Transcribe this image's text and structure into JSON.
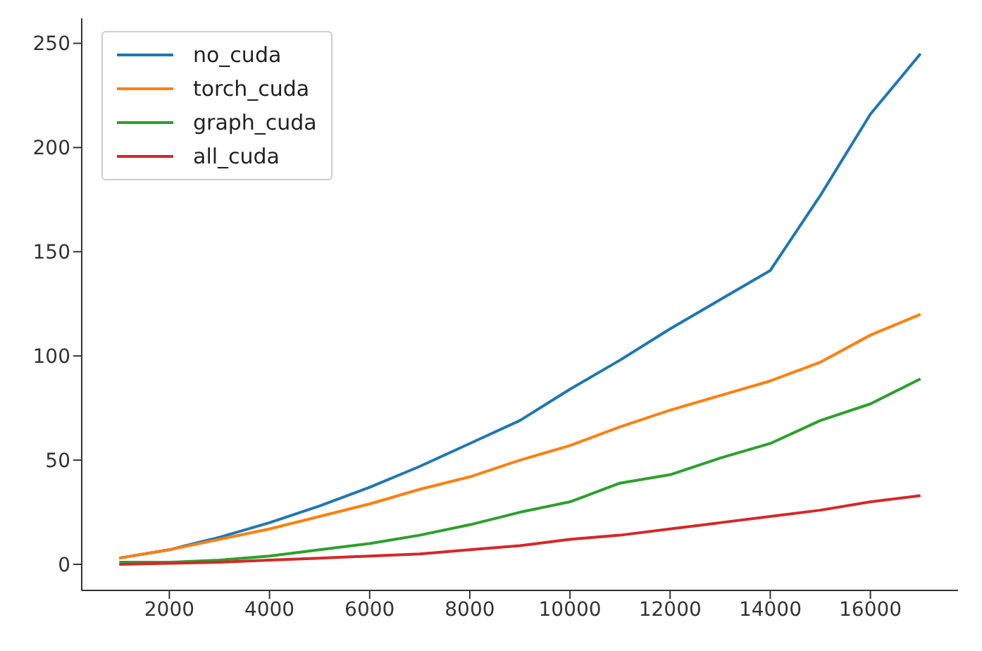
{
  "chart_data": {
    "type": "line",
    "x": [
      1000,
      2000,
      3000,
      4000,
      5000,
      6000,
      7000,
      8000,
      9000,
      10000,
      11000,
      12000,
      13000,
      14000,
      15000,
      16000,
      17000
    ],
    "series": [
      {
        "name": "no_cuda",
        "color": "#1f77b4",
        "values": [
          3,
          7,
          13,
          20,
          28,
          37,
          47,
          58,
          69,
          84,
          98,
          113,
          127,
          141,
          177,
          216,
          245
        ]
      },
      {
        "name": "torch_cuda",
        "color": "#ff7f0e",
        "values": [
          3,
          7,
          12,
          17,
          23,
          29,
          36,
          42,
          50,
          57,
          66,
          74,
          81,
          88,
          97,
          110,
          120
        ]
      },
      {
        "name": "graph_cuda",
        "color": "#2ca02c",
        "values": [
          1,
          1,
          2,
          4,
          7,
          10,
          14,
          19,
          25,
          30,
          39,
          43,
          51,
          58,
          69,
          77,
          89
        ]
      },
      {
        "name": "all_cuda",
        "color": "#d62728",
        "values": [
          0,
          0.5,
          1,
          2,
          3,
          4,
          5,
          7,
          9,
          12,
          14,
          17,
          20,
          23,
          26,
          30,
          33
        ]
      }
    ],
    "xlim": [
      250,
      17750
    ],
    "xticks": [
      2000,
      4000,
      6000,
      8000,
      10000,
      12000,
      14000,
      16000
    ],
    "ylim": [
      -12.5,
      262
    ],
    "yticks": [
      0,
      50,
      100,
      150,
      200,
      250
    ],
    "grid": false,
    "legend": "top left",
    "marker": "none",
    "line_style": "solid"
  }
}
